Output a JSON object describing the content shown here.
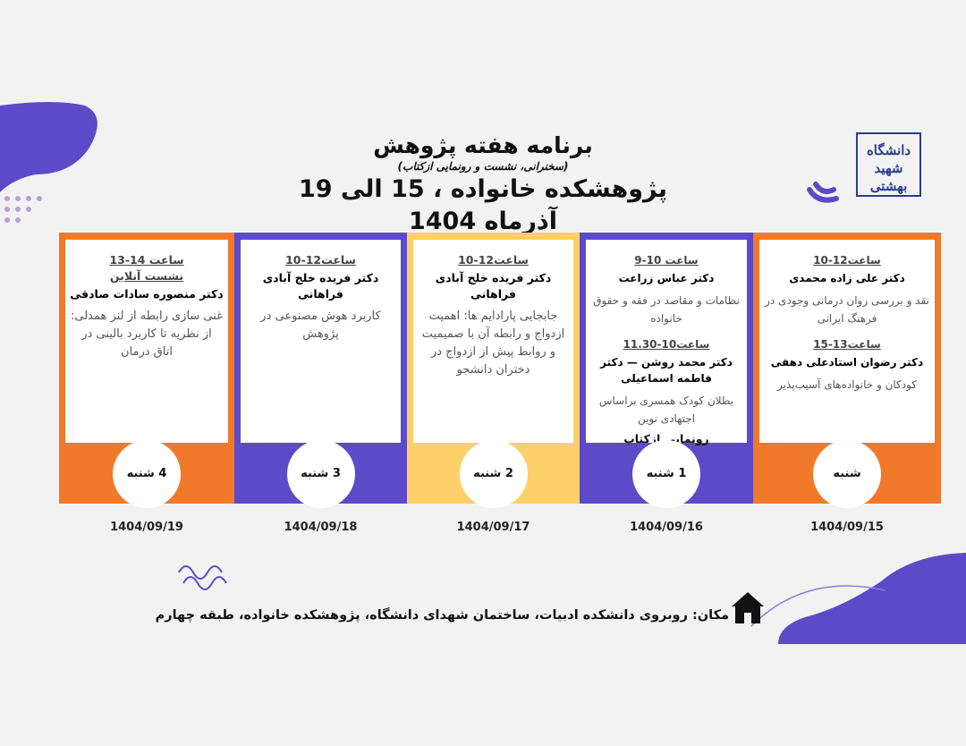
{
  "header": {
    "title": "برنامه هفته پژوهش",
    "subtitle": "(سخنرانی، نشست و رونمایی ازکتاب)",
    "event": "پژوهشکده خانواده ، 15 الی 19 آذرماه 1404"
  },
  "logo": {
    "text": "دانشگاه شهید بهشتی"
  },
  "colors": {
    "orange": "#f07a2a",
    "purple": "#5b4bc8",
    "yellow": "#fdd06a",
    "background": "#f2f2f2"
  },
  "days": [
    {
      "day": "4 شنبه",
      "date": "1404/09/19",
      "color": "#f07a2a",
      "sessions": [
        {
          "time": "ساعت 14-13",
          "note": "نشست آنلاین",
          "speaker": "دکتر منصوره سادات صادقی",
          "topic": "غنی سازی رابطه از لنز همدلی: از نظریه تا کاربرد بالینی در اتاق درمان"
        }
      ]
    },
    {
      "day": "3 شنبه",
      "date": "1404/09/18",
      "color": "#5b4bc8",
      "sessions": [
        {
          "time": "ساعت12-10",
          "speaker": "دکتر فریده خلج آبادی فراهانی",
          "topic": "کاربرد هوش مصنوعی در پژوهش"
        }
      ]
    },
    {
      "day": "2 شنبه",
      "date": "1404/09/17",
      "color": "#fdd06a",
      "sessions": [
        {
          "time": "ساعت12-10",
          "speaker": "دکتر فریده خلج آبادی فراهانی",
          "topic": "جابجایی پارادایم ها: اهمیت ازدواج و رابطه آن با صمیمیت و روابط پیش از ازدواج در دختران دانشجو"
        }
      ]
    },
    {
      "day": "1 شنبه",
      "date": "1404/09/16",
      "color": "#5b4bc8",
      "sessions": [
        {
          "time": "ساعت 10-9",
          "speaker": "دکتر عباس زراعت",
          "topic": "نظامات و مقاصد در فقه و حقوق خانواده"
        },
        {
          "time": "ساعت10-11.30",
          "speaker": "دکتر محمد روشن — دکتر فاطمه اسماعیلی",
          "topic": "بطلان کودک همسری براساس اجتهادی نوین",
          "extra": "رونمایی ازکتاب"
        }
      ]
    },
    {
      "day": "شنبه",
      "date": "1404/09/15",
      "color": "#f07a2a",
      "sessions": [
        {
          "time": "ساعت12-10",
          "speaker": "دکتر علی زاده محمدی",
          "topic": "نقد و بررسی روان درمانی وجودی در فرهنگ ایرانی"
        },
        {
          "time": "ساعت13-15",
          "speaker": "دکتر رضوان استادعلی دهقی",
          "topic": "کودکان و خانواده‌های آسیب‌پذیر"
        }
      ]
    }
  ],
  "location": {
    "text": "مکان: روبروی دانشکده ادبیات، ساختمان شهدای دانشگاه، پژوهشکده خانواده، طبقه چهارم",
    "icon": "home-icon"
  }
}
